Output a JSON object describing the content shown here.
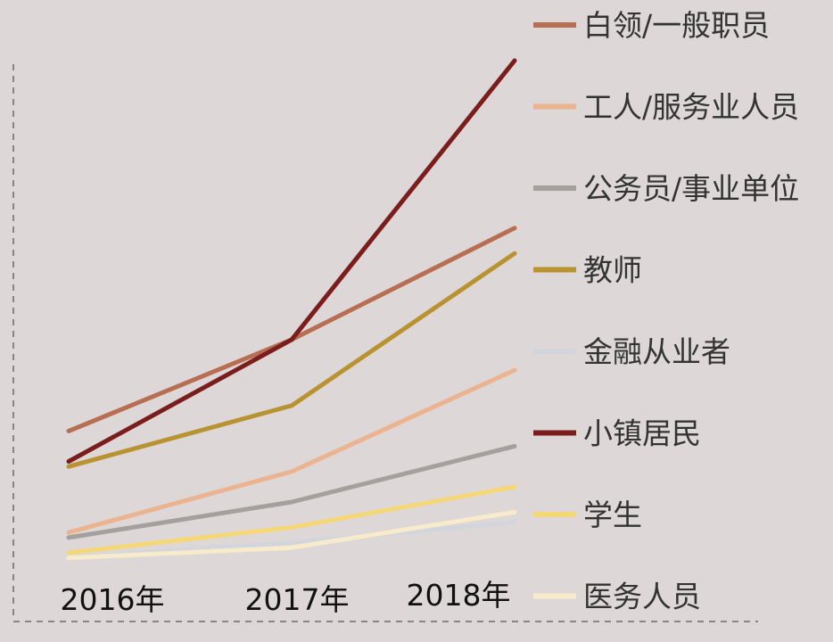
{
  "chart_data": {
    "type": "line",
    "title": "",
    "xlabel": "",
    "ylabel": "",
    "x": [
      "2016年",
      "2017年",
      "2018年"
    ],
    "y_axis_visible": false,
    "grid": false,
    "legend_position": "right",
    "ylim": [
      0,
      100
    ],
    "series": [
      {
        "name": "白领/一般职员",
        "color": "#b86e52",
        "values": [
          27,
          45,
          67
        ]
      },
      {
        "name": "工人/服务业人员",
        "color": "#ebb38f",
        "values": [
          7,
          19,
          39
        ]
      },
      {
        "name": "公务员/事业单位",
        "color": "#a3a09e",
        "values": [
          6,
          13,
          24
        ]
      },
      {
        "name": "教师",
        "color": "#b99232",
        "values": [
          20,
          32,
          62
        ]
      },
      {
        "name": "金融从业者",
        "color": "#d2d6dc",
        "values": [
          2,
          5,
          9
        ]
      },
      {
        "name": "小镇居民",
        "color": "#7b1d1d",
        "values": [
          21,
          45,
          100
        ]
      },
      {
        "name": "学生",
        "color": "#f6d778",
        "values": [
          3,
          8,
          16
        ]
      },
      {
        "name": "医务人员",
        "color": "#f7ebcc",
        "values": [
          2,
          4,
          11
        ]
      }
    ]
  }
}
